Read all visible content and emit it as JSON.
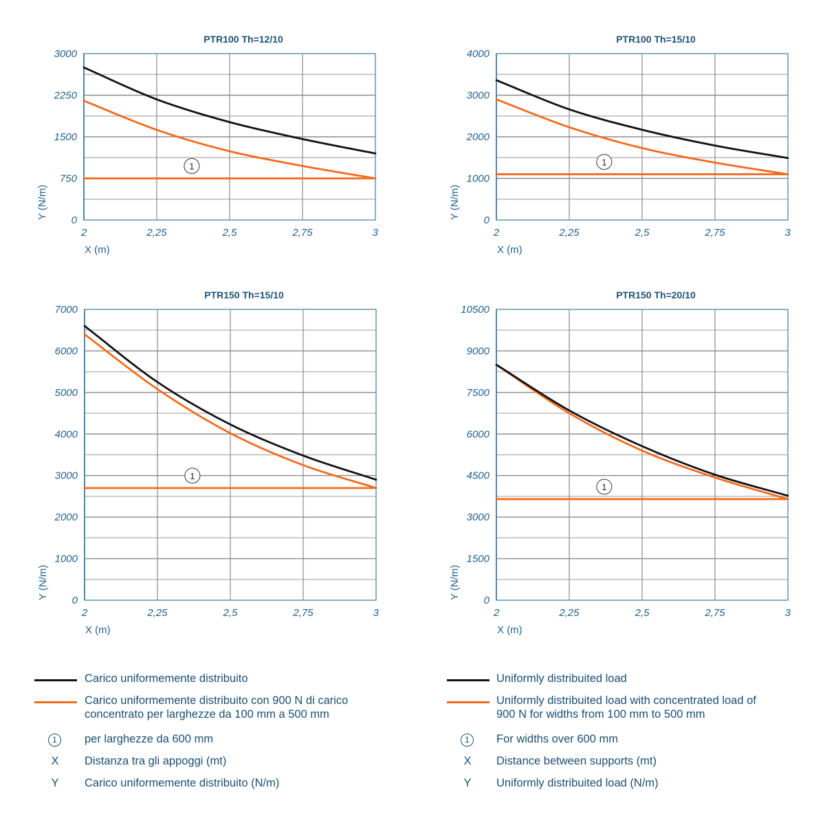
{
  "colors": {
    "uniform": "#111111",
    "concentrated": "#f26a1b",
    "text": "#1f5f8b",
    "title": "#1a5276",
    "axis": "#6a9ab8",
    "grid": "#8c8c8c"
  },
  "chart_data": [
    {
      "type": "line",
      "title": "PTR100 Th=12/10",
      "xlabel": "X (m)",
      "ylabel": "Y (N/m)",
      "xlim": [
        2,
        3
      ],
      "ylim": [
        0,
        3000
      ],
      "x_ticks": [
        2,
        2.25,
        2.5,
        2.75,
        3
      ],
      "x_tick_labels": [
        "2",
        "2,25",
        "2,5",
        "2,75",
        "3"
      ],
      "y_ticks": [
        0,
        750,
        1500,
        2250,
        3000
      ],
      "y_tick_labels": [
        "0",
        "750",
        "1500",
        "2250",
        "3000"
      ],
      "y_grid_step": 375,
      "grid": true,
      "x": [
        2,
        2.25,
        2.5,
        2.75,
        3
      ],
      "series": [
        {
          "name": "Carico uniformemente distribuito",
          "color_key": "uniform",
          "values": [
            2750,
            2175,
            1765,
            1460,
            1200
          ]
        },
        {
          "name": "Carico uniformemente distribuito con 900 N di carico concentrato",
          "color_key": "concentrated",
          "values": [
            2150,
            1625,
            1240,
            975,
            750
          ]
        },
        {
          "name": "per larghezze da 600 mm (1)",
          "color_key": "concentrated",
          "values": [
            750,
            750,
            750,
            750,
            750
          ]
        }
      ],
      "annotation": {
        "label": "1",
        "x": 2.37,
        "y_offset_series": 2
      }
    },
    {
      "type": "line",
      "title": "PTR100 Th=15/10",
      "xlabel": "X (m)",
      "ylabel": "Y (N/m)",
      "xlim": [
        2,
        3
      ],
      "ylim": [
        0,
        4000
      ],
      "x_ticks": [
        2,
        2.25,
        2.5,
        2.75,
        3
      ],
      "x_tick_labels": [
        "2",
        "2,25",
        "2,5",
        "2,75",
        "3"
      ],
      "y_ticks": [
        0,
        1000,
        2000,
        3000,
        4000
      ],
      "y_tick_labels": [
        "0",
        "1000",
        "2000",
        "3000",
        "4000"
      ],
      "y_grid_step": 500,
      "grid": true,
      "x": [
        2,
        2.25,
        2.5,
        2.75,
        3
      ],
      "series": [
        {
          "name": "Carico uniformemente distribuito",
          "color_key": "uniform",
          "values": [
            3360,
            2660,
            2170,
            1790,
            1490
          ]
        },
        {
          "name": "Carico uniformemente distribuito con 900 N di carico concentrato",
          "color_key": "concentrated",
          "values": [
            2900,
            2230,
            1730,
            1380,
            1100
          ]
        },
        {
          "name": "per larghezze da 600 mm (1)",
          "color_key": "concentrated",
          "values": [
            1100,
            1100,
            1100,
            1100,
            1100
          ]
        }
      ],
      "annotation": {
        "label": "1",
        "x": 2.37,
        "y_offset_series": 2
      }
    },
    {
      "type": "line",
      "title": "PTR150 Th=15/10",
      "xlabel": "X (m)",
      "ylabel": "Y (N/m)",
      "xlim": [
        2,
        3
      ],
      "ylim": [
        0,
        7000
      ],
      "x_ticks": [
        2,
        2.25,
        2.5,
        2.75,
        3
      ],
      "x_tick_labels": [
        "2",
        "2,25",
        "2,5",
        "2,75",
        "3"
      ],
      "y_ticks": [
        0,
        1000,
        2000,
        3000,
        4000,
        5000,
        6000,
        7000
      ],
      "y_tick_labels": [
        "0",
        "1000",
        "2000",
        "3000",
        "4000",
        "5000",
        "6000",
        "7000"
      ],
      "y_grid_step": 500,
      "grid": true,
      "x": [
        2,
        2.25,
        2.5,
        2.75,
        3
      ],
      "series": [
        {
          "name": "Carico uniformemente distribuito",
          "color_key": "uniform",
          "values": [
            6600,
            5250,
            4230,
            3480,
            2900
          ]
        },
        {
          "name": "Carico uniformemente distribuito con 900 N di carico concentrato",
          "color_key": "concentrated",
          "values": [
            6400,
            5080,
            4020,
            3250,
            2700
          ]
        },
        {
          "name": "per larghezze da 600 mm (1)",
          "color_key": "concentrated",
          "values": [
            2700,
            2700,
            2700,
            2700,
            2700
          ]
        }
      ],
      "annotation": {
        "label": "1",
        "x": 2.37,
        "y_offset_series": 2
      }
    },
    {
      "type": "line",
      "title": "PTR150 Th=20/10",
      "xlabel": "X (m)",
      "ylabel": "Y (N/m)",
      "xlim": [
        2,
        3
      ],
      "ylim": [
        0,
        10500
      ],
      "x_ticks": [
        2,
        2.25,
        2.5,
        2.75,
        3
      ],
      "x_tick_labels": [
        "2",
        "2,25",
        "2,5",
        "2,75",
        "3"
      ],
      "y_ticks": [
        0,
        1500,
        3000,
        4500,
        6000,
        7500,
        9000,
        10500
      ],
      "y_tick_labels": [
        "0",
        "1500",
        "3000",
        "4500",
        "6000",
        "7500",
        "9000",
        "10500"
      ],
      "y_grid_step": 750,
      "grid": true,
      "x": [
        2,
        2.25,
        2.5,
        2.75,
        3
      ],
      "series": [
        {
          "name": "Uniformly distribuited load",
          "color_key": "uniform",
          "values": [
            8500,
            6850,
            5560,
            4530,
            3770
          ]
        },
        {
          "name": "Uniformly distribuited load with concentrated load of 900 N",
          "color_key": "concentrated",
          "values": [
            8500,
            6750,
            5400,
            4430,
            3650
          ]
        },
        {
          "name": "For widths over 600 mm (1)",
          "color_key": "concentrated",
          "values": [
            3650,
            3650,
            3650,
            3650,
            3650
          ]
        }
      ],
      "annotation": {
        "label": "1",
        "x": 2.37,
        "y_offset_series": 2
      }
    }
  ],
  "legend_it": {
    "line_uniform": "Carico uniformemente distribuito",
    "line_concentrated_1": "Carico uniformemente distribuito con 900 N di carico",
    "line_concentrated_2": "concentrato per larghezze da 100 mm a 500 mm",
    "marker_symbol": "1",
    "marker_text": "per larghezze da 600 mm",
    "x_symbol": "X",
    "x_text": "Distanza tra gli appoggi (mt)",
    "y_symbol": "Y",
    "y_text": "Carico uniformemente distribuito (N/m)"
  },
  "legend_en": {
    "line_uniform": "Uniformly distribuited load",
    "line_concentrated_1": "Uniformly distribuited load with concentrated load of",
    "line_concentrated_2": "900 N for widths from 100 mm to 500 mm",
    "marker_symbol": "1",
    "marker_text": "For widths over 600 mm",
    "x_symbol": "X",
    "x_text": "Distance between supports (mt)",
    "y_symbol": "Y",
    "y_text": "Uniformly distribuited load (N/m)"
  }
}
